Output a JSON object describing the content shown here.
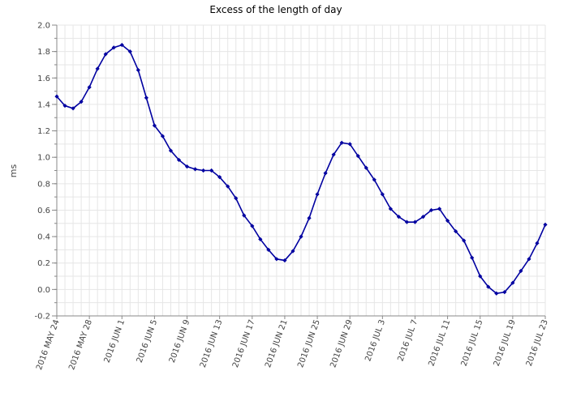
{
  "chart_data": {
    "type": "line",
    "title": "Excess of the length of day",
    "xlabel": "",
    "ylabel": "ms",
    "ylim": [
      -0.2,
      2.0
    ],
    "yticks": [
      -0.2,
      0.0,
      0.2,
      0.4,
      0.6,
      0.8,
      1.0,
      1.2,
      1.4,
      1.6,
      1.8,
      2.0
    ],
    "ytick_labels": [
      "-0.2",
      "0.0",
      "0.2",
      "0.4",
      "0.6",
      "0.8",
      "1.0",
      "1.2",
      "1.4",
      "1.6",
      "1.8",
      "2.0"
    ],
    "xtick_labels": [
      "2016 MAY 24",
      "2016 MAY 28",
      "2016 JUN 1",
      "2016 JUN 5",
      "2016 JUN 9",
      "2016 JUN 13",
      "2016 JUN 17",
      "2016 JUN 21",
      "2016 JUN 25",
      "2016 JUN 29",
      "2016 JUL 3",
      "2016 JUL 7",
      "2016 JUL 11",
      "2016 JUL 15",
      "2016 JUL 19",
      "2016 JUL 23"
    ],
    "grid": true,
    "colors": {
      "line": "#0000a0",
      "grid": "#e6e6e6",
      "axis": "#888888"
    },
    "series": [
      {
        "x": [
          "2016-05-24",
          "2016-05-25",
          "2016-05-26",
          "2016-05-27",
          "2016-05-28",
          "2016-05-29",
          "2016-05-30",
          "2016-05-31",
          "2016-06-01",
          "2016-06-02",
          "2016-06-03",
          "2016-06-04",
          "2016-06-05",
          "2016-06-06",
          "2016-06-07",
          "2016-06-08",
          "2016-06-09",
          "2016-06-10",
          "2016-06-11",
          "2016-06-12",
          "2016-06-13",
          "2016-06-14",
          "2016-06-15",
          "2016-06-16",
          "2016-06-17",
          "2016-06-18",
          "2016-06-19",
          "2016-06-20",
          "2016-06-21",
          "2016-06-22",
          "2016-06-23",
          "2016-06-24",
          "2016-06-25",
          "2016-06-26",
          "2016-06-27",
          "2016-06-28",
          "2016-06-29",
          "2016-06-30",
          "2016-07-01",
          "2016-07-02",
          "2016-07-03",
          "2016-07-04",
          "2016-07-05",
          "2016-07-06",
          "2016-07-07",
          "2016-07-08",
          "2016-07-09",
          "2016-07-10",
          "2016-07-11",
          "2016-07-12",
          "2016-07-13",
          "2016-07-14",
          "2016-07-15",
          "2016-07-16",
          "2016-07-17",
          "2016-07-18",
          "2016-07-19",
          "2016-07-20",
          "2016-07-21",
          "2016-07-22",
          "2016-07-23"
        ],
        "values": [
          1.46,
          1.39,
          1.37,
          1.42,
          1.53,
          1.67,
          1.78,
          1.83,
          1.85,
          1.8,
          1.66,
          1.45,
          1.24,
          1.16,
          1.05,
          0.98,
          0.93,
          0.91,
          0.9,
          0.9,
          0.85,
          0.78,
          0.69,
          0.56,
          0.48,
          0.38,
          0.3,
          0.23,
          0.22,
          0.29,
          0.4,
          0.54,
          0.72,
          0.88,
          1.02,
          1.11,
          1.1,
          1.01,
          0.92,
          0.83,
          0.72,
          0.61,
          0.55,
          0.51,
          0.51,
          0.55,
          0.6,
          0.61,
          0.52,
          0.44,
          0.37,
          0.24,
          0.1,
          0.02,
          -0.03,
          -0.02,
          0.05,
          0.14,
          0.23,
          0.35,
          0.49
        ]
      }
    ]
  }
}
